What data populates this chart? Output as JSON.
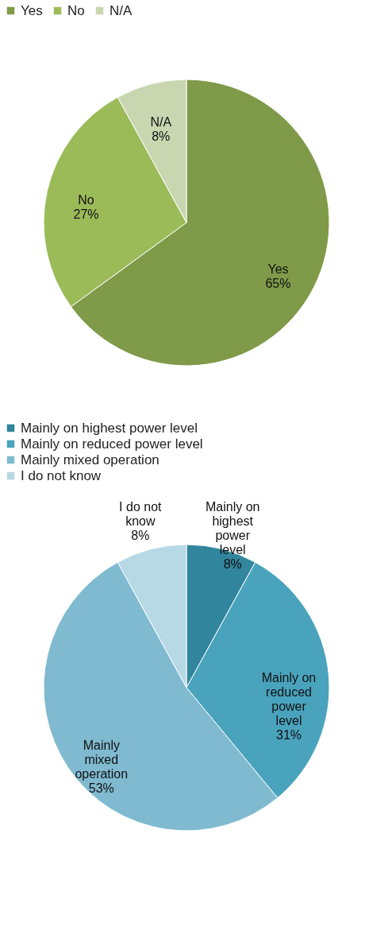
{
  "chart_data": [
    {
      "type": "pie",
      "categories": [
        "Yes",
        "No",
        "N/A"
      ],
      "values": [
        65,
        27,
        8
      ],
      "colors": [
        "#7f9a48",
        "#9bbb59",
        "#c8d7b0"
      ],
      "data_labels": true,
      "value_labels": [
        "65%",
        "27%",
        "8%"
      ],
      "legend": "top"
    },
    {
      "type": "pie",
      "categories": [
        "Mainly on highest power level",
        "Mainly on reduced power level",
        "Mainly mixed operation",
        "I do not know"
      ],
      "values": [
        8,
        31,
        53,
        8
      ],
      "colors": [
        "#31859c",
        "#4aa3bd",
        "#7fbad0",
        "#b7d8e5"
      ],
      "data_labels": true,
      "value_labels": [
        "8%",
        "31%",
        "53%",
        "8%"
      ],
      "legend": "top"
    }
  ]
}
